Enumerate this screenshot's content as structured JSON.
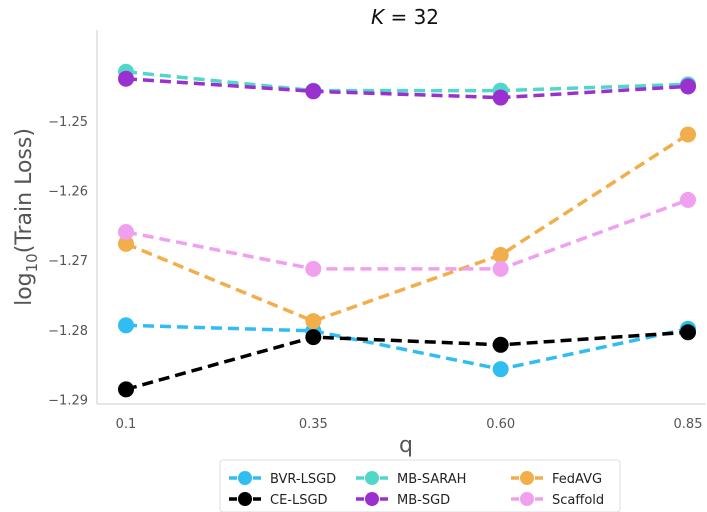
{
  "chart_data": {
    "type": "line",
    "title": "K = 32",
    "xlabel": "q",
    "ylabel": "log10(Train Loss)",
    "categories": [
      "0.1",
      "0.35",
      "0.60",
      "0.85"
    ],
    "yticks": [
      "-1.25",
      "-1.26",
      "-1.27",
      "-1.28",
      "-1.29"
    ],
    "ylim": [
      -1.2905,
      -1.2368
    ],
    "grid": false,
    "legend_position": "bottom-center",
    "series": [
      {
        "name": "BVR-LSGD",
        "color": "#30bdf2",
        "values": [
          -1.2792,
          -1.28,
          -1.2855,
          -1.2797
        ]
      },
      {
        "name": "CE-LSGD",
        "color": "#000000",
        "values": [
          -1.2884,
          -1.2809,
          -1.282,
          -1.2802
        ]
      },
      {
        "name": "MB-SARAH",
        "color": "#4fd8c8",
        "values": [
          -1.2428,
          -1.2455,
          -1.2455,
          -1.2446
        ]
      },
      {
        "name": "MB-SGD",
        "color": "#9b30d0",
        "values": [
          -1.2438,
          -1.2456,
          -1.2465,
          -1.2449
        ]
      },
      {
        "name": "FedAVG",
        "color": "#f2ae4a",
        "values": [
          -1.2675,
          -1.2786,
          -1.2691,
          -1.2518
        ]
      },
      {
        "name": "Scaffold",
        "color": "#f0a0ee",
        "values": [
          -1.2658,
          -1.2711,
          -1.2711,
          -1.2612
        ]
      }
    ]
  }
}
